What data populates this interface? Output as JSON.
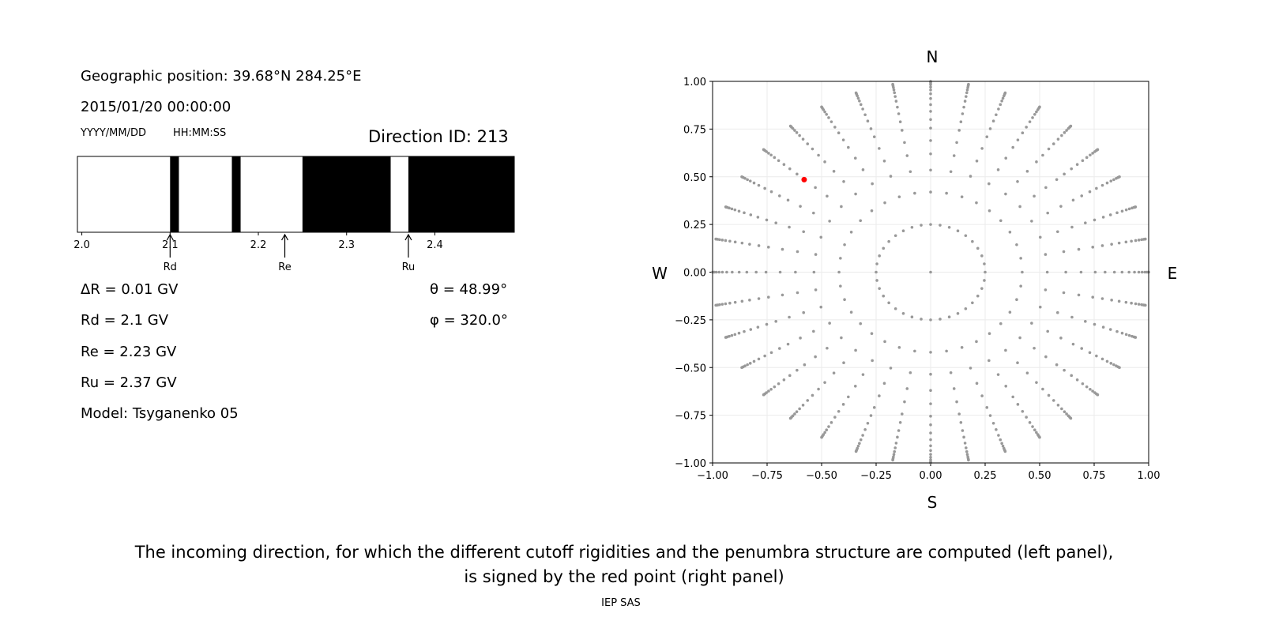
{
  "left_panel": {
    "geo_position": "Geographic position: 39.68°N 284.25°E",
    "datetime": "2015/01/20 00:00:00",
    "date_format": "YYYY/MM/DD",
    "time_format": "HH:MM:SS",
    "direction_id": "Direction ID: 213",
    "delta_r": "ΔR = 0.01 GV",
    "rd": "Rd = 2.1 GV",
    "re": "Re = 2.23 GV",
    "ru": "Ru = 2.37 GV",
    "model": "Model: Tsyganenko 05",
    "theta": "θ = 48.99°",
    "phi": "φ = 320.0°"
  },
  "caption": {
    "line1": "The incoming direction, for which the different cutoff rigidities and the penumbra structure are computed (left panel),",
    "line2": "is signed by the red point (right panel)",
    "credit": "IEP SAS"
  },
  "chart_data": [
    {
      "type": "bar",
      "subtype": "penumbra",
      "xlim": [
        1.995,
        2.49
      ],
      "xticks": [
        "2.0",
        "2.1",
        "2.2",
        "2.3",
        "2.4"
      ],
      "xtick_values": [
        2.0,
        2.1,
        2.2,
        2.3,
        2.4
      ],
      "segments": [
        {
          "from": 1.995,
          "to": 2.1,
          "color": "#ffffff"
        },
        {
          "from": 2.1,
          "to": 2.11,
          "color": "#000000"
        },
        {
          "from": 2.11,
          "to": 2.17,
          "color": "#ffffff"
        },
        {
          "from": 2.17,
          "to": 2.18,
          "color": "#000000"
        },
        {
          "from": 2.18,
          "to": 2.25,
          "color": "#ffffff"
        },
        {
          "from": 2.25,
          "to": 2.35,
          "color": "#000000"
        },
        {
          "from": 2.35,
          "to": 2.37,
          "color": "#ffffff"
        },
        {
          "from": 2.37,
          "to": 2.49,
          "color": "#000000"
        }
      ],
      "markers": [
        {
          "label": "Rd",
          "value": 2.1
        },
        {
          "label": "Re",
          "value": 2.23
        },
        {
          "label": "Ru",
          "value": 2.37
        }
      ]
    },
    {
      "type": "scatter",
      "xlim": [
        -1,
        1
      ],
      "ylim": [
        -1,
        1
      ],
      "grid": true,
      "ticks": [
        "−1.00",
        "−0.75",
        "−0.50",
        "−0.25",
        "0.00",
        "0.25",
        "0.50",
        "0.75",
        "1.00"
      ],
      "tick_values": [
        -1,
        -0.75,
        -0.5,
        -0.25,
        0,
        0.25,
        0.5,
        0.75,
        1
      ],
      "compass": {
        "top": "N",
        "bottom": "S",
        "left": "W",
        "right": "E"
      },
      "point_color": "#999999",
      "azimuth_step_deg": 10,
      "radii": [
        0.25,
        0.42,
        0.535,
        0.62,
        0.69,
        0.755,
        0.8,
        0.843,
        0.878,
        0.91,
        0.935,
        0.955,
        0.97,
        0.983,
        0.992,
        0.998,
        1.0
      ],
      "center_point": [
        0,
        0
      ],
      "highlight": {
        "x": -0.58,
        "y": 0.485,
        "color": "#ff0000"
      }
    }
  ]
}
